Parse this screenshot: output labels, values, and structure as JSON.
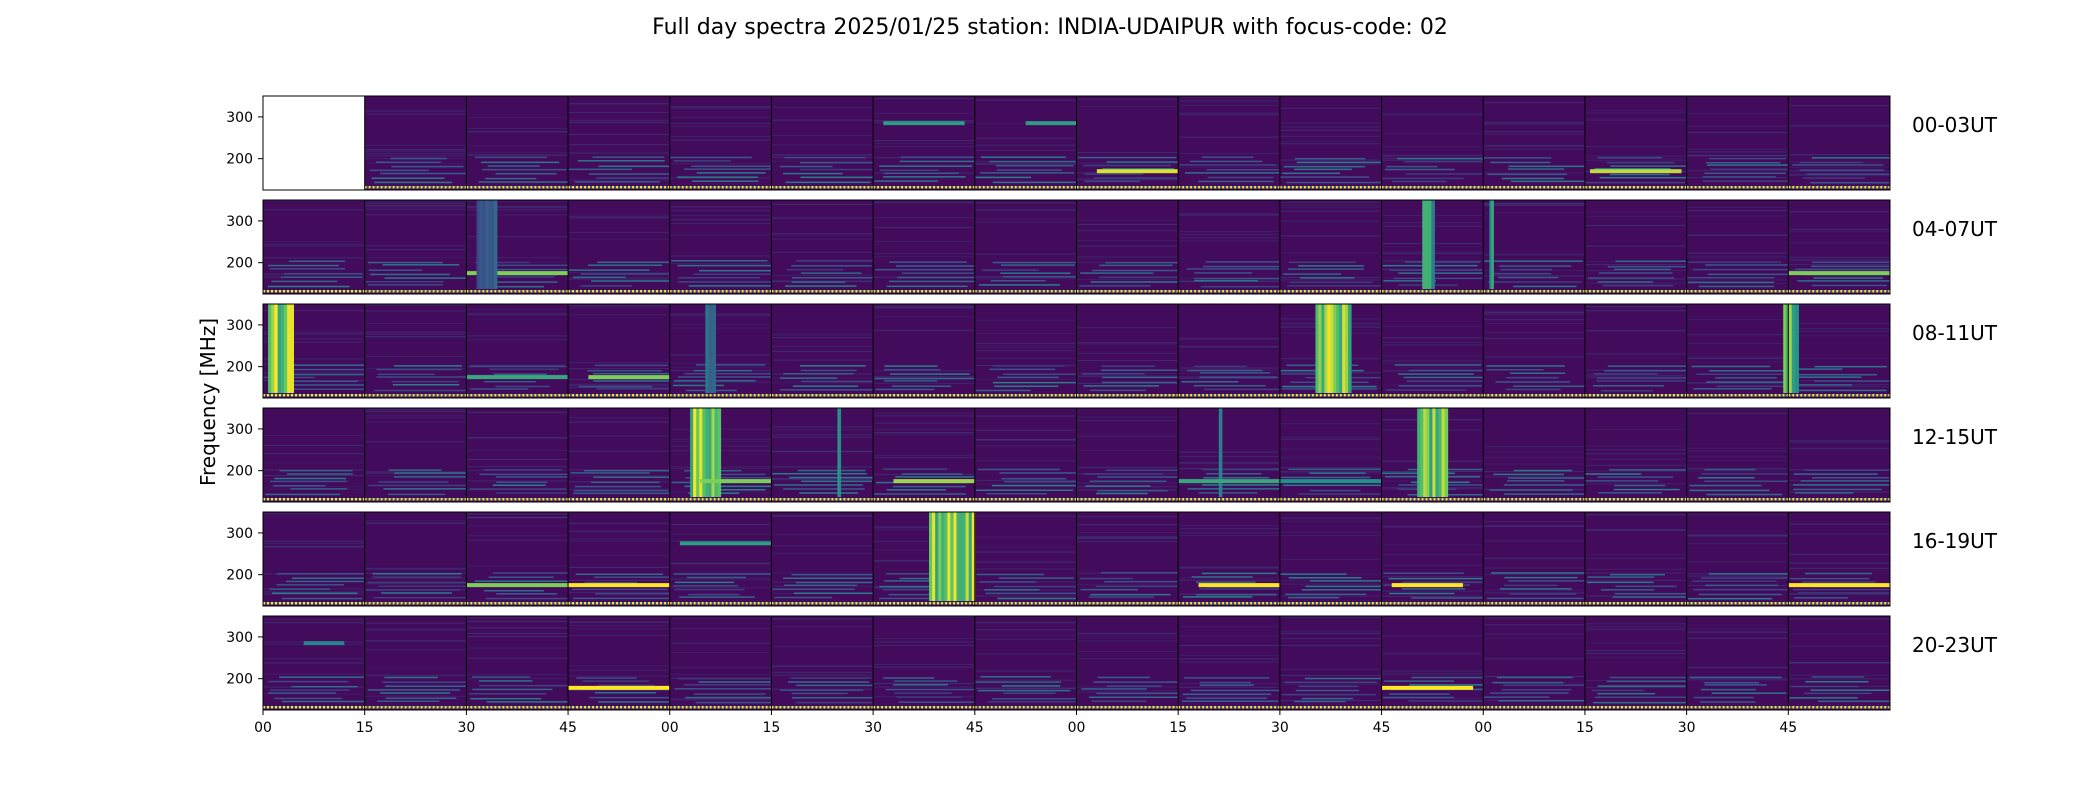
{
  "chart_data": {
    "type": "heatmap",
    "title": "Full day spectra 2025/01/25 station: INDIA-UDAIPUR with focus-code: 02",
    "ylabel": "Frequency [MHz]",
    "xlabel": "",
    "colormap": [
      "#440154",
      "#3b528b",
      "#21918c",
      "#5ec962",
      "#fde725"
    ],
    "ytick_values": [
      300,
      200
    ],
    "ytick_labels": [
      "300",
      "200"
    ],
    "ylim": [
      125,
      350
    ],
    "xtick_labels": [
      "00",
      "15",
      "30",
      "45",
      "00",
      "15",
      "30",
      "45",
      "00",
      "15",
      "30",
      "45",
      "00",
      "15",
      "30",
      "45"
    ],
    "panels_per_row": 16,
    "minutes_per_panel": 15,
    "rows": [
      {
        "label": "00-03UT",
        "empty_panels": [
          0
        ],
        "features": [
          {
            "panel": 8,
            "type": "band",
            "start": 0.2,
            "end": 1.0,
            "freq": 170,
            "level": 0.95
          },
          {
            "panel": 13,
            "type": "band",
            "start": 0.05,
            "end": 0.95,
            "freq": 170,
            "level": 0.9
          },
          {
            "panel": 6,
            "type": "band",
            "start": 0.1,
            "end": 0.9,
            "freq": 285,
            "level": 0.55
          },
          {
            "panel": 7,
            "type": "band",
            "start": 0.5,
            "end": 1.0,
            "freq": 285,
            "level": 0.55
          }
        ]
      },
      {
        "label": "04-07UT",
        "empty_panels": [],
        "features": [
          {
            "panel": 2,
            "type": "band",
            "start": 0.0,
            "end": 1.0,
            "freq": 175,
            "level": 0.8
          },
          {
            "panel": 2,
            "type": "burst",
            "start": 0.1,
            "end": 0.3,
            "level": 0.4
          },
          {
            "panel": 11,
            "type": "burst",
            "start": 0.4,
            "end": 0.52,
            "level": 0.7
          },
          {
            "panel": 12,
            "type": "burst",
            "start": 0.06,
            "end": 0.1,
            "level": 0.6
          },
          {
            "panel": 15,
            "type": "band",
            "start": 0.0,
            "end": 1.0,
            "freq": 175,
            "level": 0.8
          }
        ]
      },
      {
        "label": "08-11UT",
        "empty_panels": [],
        "features": [
          {
            "panel": 0,
            "type": "burst",
            "start": 0.05,
            "end": 0.3,
            "level": 1.0
          },
          {
            "panel": 2,
            "type": "band",
            "start": 0.0,
            "end": 1.0,
            "freq": 175,
            "level": 0.6
          },
          {
            "panel": 3,
            "type": "band",
            "start": 0.2,
            "end": 1.0,
            "freq": 175,
            "level": 0.8
          },
          {
            "panel": 4,
            "type": "burst",
            "start": 0.35,
            "end": 0.45,
            "level": 0.4
          },
          {
            "panel": 10,
            "type": "burst",
            "start": 0.35,
            "end": 0.7,
            "level": 1.0
          },
          {
            "panel": 14,
            "type": "burst",
            "start": 0.95,
            "end": 1.0,
            "level": 0.9
          },
          {
            "panel": 15,
            "type": "burst",
            "start": 0.0,
            "end": 0.1,
            "level": 0.9
          }
        ]
      },
      {
        "label": "12-15UT",
        "empty_panels": [],
        "features": [
          {
            "panel": 4,
            "type": "burst",
            "start": 0.2,
            "end": 0.5,
            "level": 1.0
          },
          {
            "panel": 4,
            "type": "band",
            "start": 0.3,
            "end": 1.0,
            "freq": 175,
            "level": 0.8
          },
          {
            "panel": 5,
            "type": "burst",
            "start": 0.65,
            "end": 0.68,
            "level": 0.6
          },
          {
            "panel": 6,
            "type": "band",
            "start": 0.2,
            "end": 1.0,
            "freq": 175,
            "level": 0.85
          },
          {
            "panel": 9,
            "type": "burst",
            "start": 0.4,
            "end": 0.43,
            "level": 0.6
          },
          {
            "panel": 9,
            "type": "band",
            "start": 0.0,
            "end": 1.0,
            "freq": 175,
            "level": 0.6
          },
          {
            "panel": 10,
            "type": "band",
            "start": 0.0,
            "end": 1.0,
            "freq": 175,
            "level": 0.5
          },
          {
            "panel": 11,
            "type": "burst",
            "start": 0.35,
            "end": 0.65,
            "level": 1.0
          }
        ]
      },
      {
        "label": "16-19UT",
        "empty_panels": [],
        "features": [
          {
            "panel": 2,
            "type": "band",
            "start": 0.0,
            "end": 1.0,
            "freq": 175,
            "level": 0.8
          },
          {
            "panel": 3,
            "type": "band",
            "start": 0.0,
            "end": 1.0,
            "freq": 175,
            "level": 1.0
          },
          {
            "panel": 4,
            "type": "band",
            "start": 0.1,
            "end": 1.0,
            "freq": 275,
            "level": 0.55
          },
          {
            "panel": 6,
            "type": "burst",
            "start": 0.55,
            "end": 1.0,
            "level": 1.0
          },
          {
            "panel": 9,
            "type": "band",
            "start": 0.2,
            "end": 1.0,
            "freq": 175,
            "level": 1.0
          },
          {
            "panel": 11,
            "type": "band",
            "start": 0.1,
            "end": 0.8,
            "freq": 175,
            "level": 1.0
          },
          {
            "panel": 15,
            "type": "band",
            "start": 0.0,
            "end": 1.0,
            "freq": 175,
            "level": 1.0
          }
        ]
      },
      {
        "label": "20-23UT",
        "empty_panels": [],
        "features": [
          {
            "panel": 0,
            "type": "band",
            "start": 0.4,
            "end": 0.8,
            "freq": 285,
            "level": 0.45
          },
          {
            "panel": 3,
            "type": "band",
            "start": 0.0,
            "end": 1.0,
            "freq": 178,
            "level": 1.0
          },
          {
            "panel": 11,
            "type": "band",
            "start": 0.0,
            "end": 0.9,
            "freq": 178,
            "level": 1.0
          }
        ]
      }
    ]
  }
}
